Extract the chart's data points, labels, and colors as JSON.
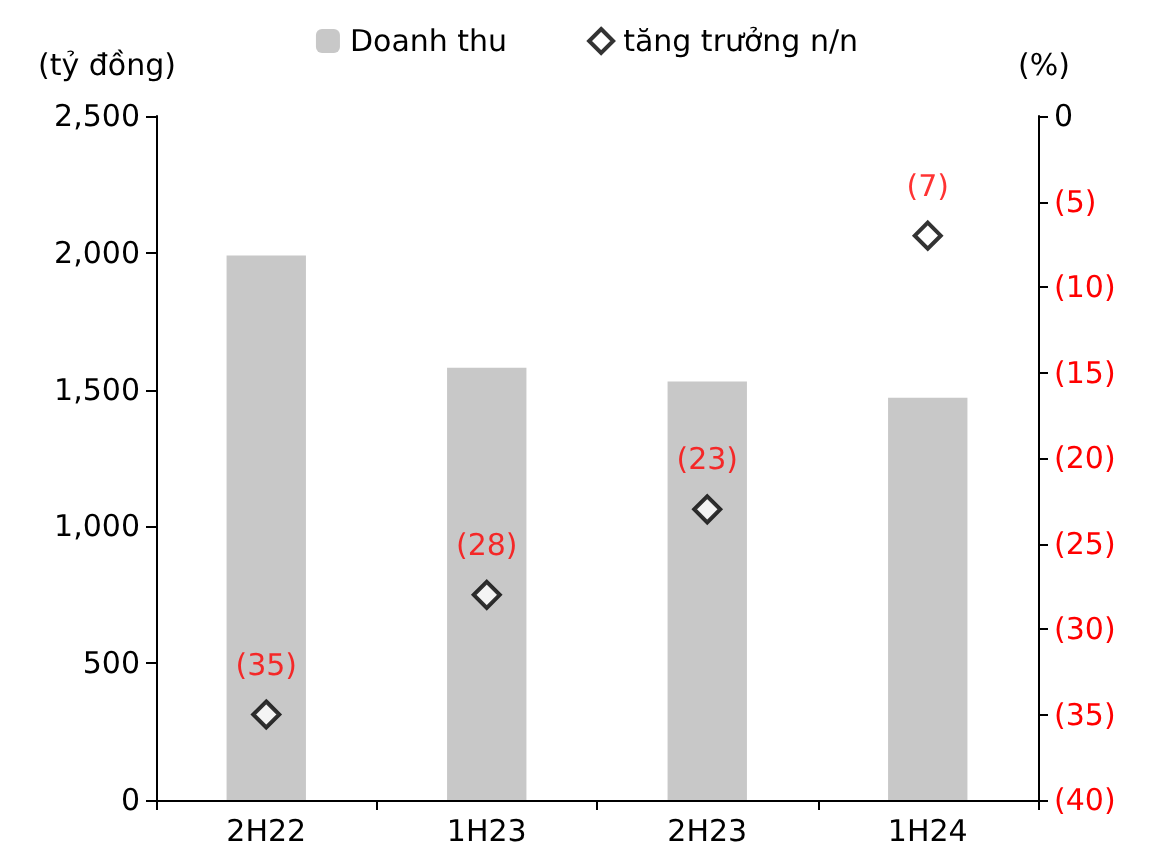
{
  "chart_data": {
    "type": "bar",
    "ylabel": "(tỷ đồng)",
    "y2label": "(%)",
    "categories": [
      "2H22",
      "1H23",
      "2H23",
      "1H24"
    ],
    "series": [
      {
        "name": "Doanh thu",
        "color": "#c8c8c8",
        "values": [
          1990,
          1580,
          1530,
          1470
        ]
      },
      {
        "name": "tăng trưởng n/n",
        "type": "scatter",
        "axis": "y2",
        "color": "#000000",
        "marker": "diamond",
        "values": [
          -35,
          -28,
          -23,
          -7
        ],
        "value_labels": [
          "(35)",
          "(28)",
          "(23)",
          "(7)"
        ]
      }
    ],
    "ylim": [
      0,
      2500
    ],
    "yticks": [
      {
        "value": 0,
        "label": "0"
      },
      {
        "value": 500,
        "label": "500"
      },
      {
        "value": 1000,
        "label": "1,000"
      },
      {
        "value": 1500,
        "label": "1,500"
      },
      {
        "value": 2000,
        "label": "2,000"
      },
      {
        "value": 2500,
        "label": "2,500"
      }
    ],
    "y2lim": [
      -40,
      0
    ],
    "y2ticks": [
      {
        "value": -40,
        "label": "(40)"
      },
      {
        "value": -35,
        "label": "(35)"
      },
      {
        "value": -30,
        "label": "(30)"
      },
      {
        "value": -25,
        "label": "(25)"
      },
      {
        "value": -20,
        "label": "(20)"
      },
      {
        "value": -15,
        "label": "(15)"
      },
      {
        "value": -10,
        "label": "(10)"
      },
      {
        "value": -5,
        "label": "(5)"
      },
      {
        "value": 0,
        "label": "0"
      }
    ],
    "grid": false,
    "legend": "top"
  }
}
